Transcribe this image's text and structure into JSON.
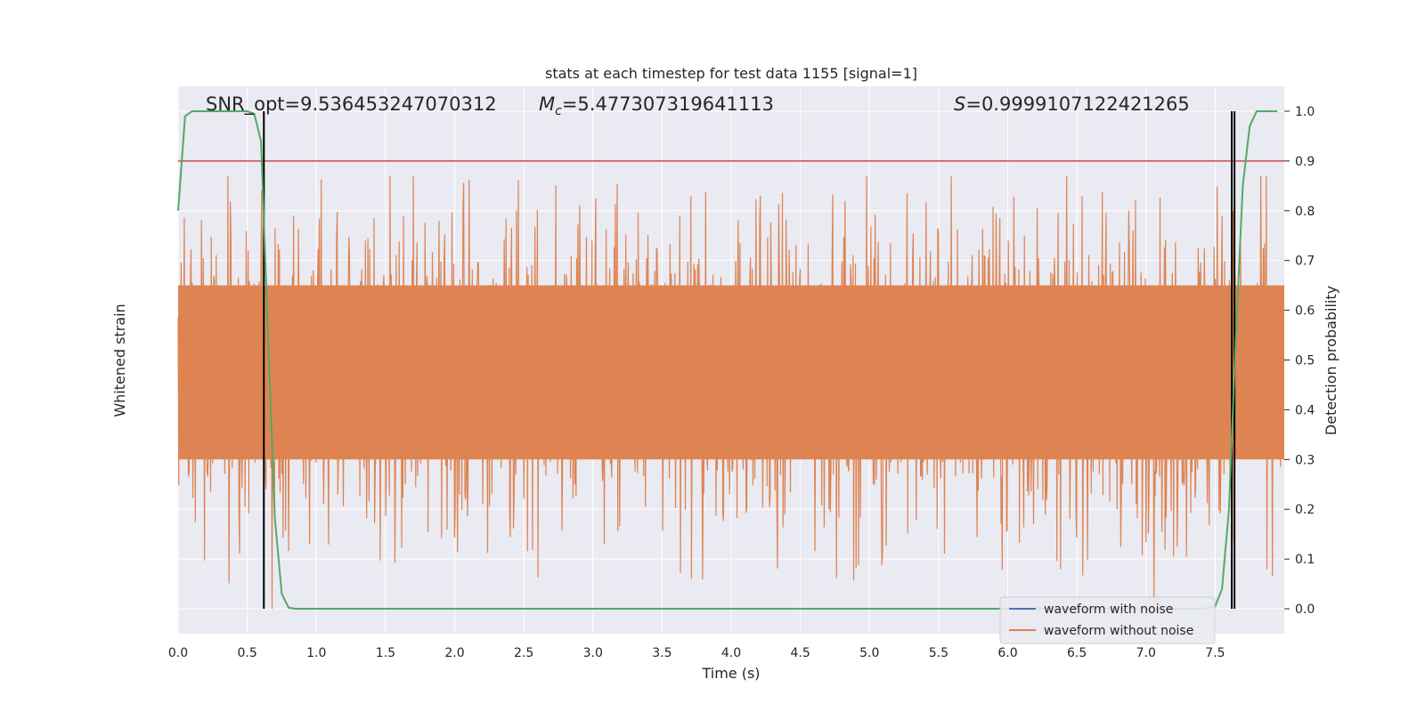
{
  "chart_data": {
    "type": "line",
    "title": "stats at each timestep for test data 1155 [signal=1]",
    "xlabel": "Time (s)",
    "ylabel_left": "Whitened strain",
    "ylabel_right": "Detection probability",
    "xlim": [
      0.0,
      8.0
    ],
    "ylim_right": [
      -0.05,
      1.05
    ],
    "x_ticks": [
      "0.0",
      "0.5",
      "1.0",
      "1.5",
      "2.0",
      "2.5",
      "3.0",
      "3.5",
      "4.0",
      "4.5",
      "5.0",
      "5.5",
      "6.0",
      "6.5",
      "7.0",
      "7.5"
    ],
    "x_tick_values": [
      0.0,
      0.5,
      1.0,
      1.5,
      2.0,
      2.5,
      3.0,
      3.5,
      4.0,
      4.5,
      5.0,
      5.5,
      6.0,
      6.5,
      7.0,
      7.5
    ],
    "y_right_ticks": [
      "0.0",
      "0.1",
      "0.2",
      "0.3",
      "0.4",
      "0.5",
      "0.6",
      "0.7",
      "0.8",
      "0.9",
      "1.0"
    ],
    "y_right_tick_values": [
      0.0,
      0.1,
      0.2,
      0.3,
      0.4,
      0.5,
      0.6,
      0.7,
      0.8,
      0.9,
      1.0
    ],
    "grid": true,
    "legend_position": "bottom-right",
    "annotations": {
      "snr": "SNR_opt=9.536453247070312",
      "mc_symbol": "M",
      "mc_sub": "c",
      "mc_value": "=5.477307319641113",
      "s_symbol": "S",
      "s_value": "=0.9999107122421265"
    },
    "threshold": 0.9,
    "vertical_markers": [
      0.62,
      7.62,
      7.64
    ],
    "series": [
      {
        "name": "waveform with noise",
        "color": "#4c72b0",
        "kind": "strain"
      },
      {
        "name": "waveform without noise",
        "color": "#dd8452",
        "kind": "strain",
        "band_core": [
          0.3,
          0.65
        ],
        "peak_extent": [
          0.0,
          0.87
        ]
      },
      {
        "name": "detection probability",
        "color": "#55a868",
        "kind": "probability",
        "x": [
          0.0,
          0.05,
          0.1,
          0.2,
          0.3,
          0.4,
          0.5,
          0.55,
          0.6,
          0.65,
          0.7,
          0.75,
          0.8,
          0.85,
          1.0,
          2.0,
          3.0,
          4.0,
          5.0,
          6.0,
          7.0,
          7.4,
          7.5,
          7.55,
          7.6,
          7.65,
          7.7,
          7.75,
          7.8,
          7.85,
          7.9,
          7.95
        ],
        "y": [
          0.8,
          0.99,
          1.0,
          1.0,
          1.0,
          1.0,
          1.0,
          0.995,
          0.94,
          0.55,
          0.18,
          0.03,
          0.002,
          0.0,
          0.0,
          0.0,
          0.0,
          0.0,
          0.0,
          0.0,
          0.0,
          0.0,
          0.005,
          0.04,
          0.2,
          0.55,
          0.85,
          0.97,
          1.0,
          1.0,
          1.0,
          1.0
        ]
      }
    ],
    "colors": {
      "background": "#eaeaf2",
      "grid": "#ffffff",
      "threshold": "#c44e52",
      "marker": "#000000"
    }
  }
}
